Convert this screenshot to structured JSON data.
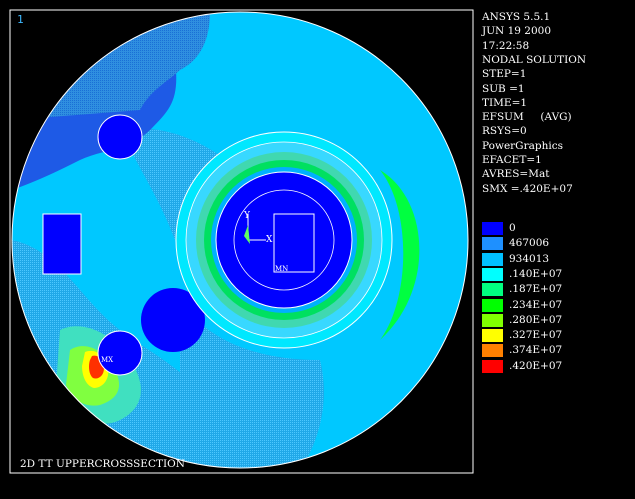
{
  "window": {
    "number": "1",
    "title": "2D TT UPPERCROSSSECTION"
  },
  "header_lines": [
    "ANSYS 5.5.1",
    "JUN 19 2000",
    "17:22:58",
    "NODAL SOLUTION",
    "STEP=1",
    "SUB =1",
    "TIME=1",
    "EFSUM     (AVG)",
    "RSYS=0",
    "PowerGraphics",
    "EFACET=1",
    "AVRES=Mat",
    "SMX =.420E+07"
  ],
  "legend": [
    {
      "label": "0",
      "color": "#0000ff"
    },
    {
      "label": "467006",
      "color": "#1e90ff"
    },
    {
      "label": "934013",
      "color": "#00c0ff"
    },
    {
      "label": ".140E+07",
      "color": "#00ffff"
    },
    {
      "label": ".187E+07",
      "color": "#00ff80"
    },
    {
      "label": ".234E+07",
      "color": "#00ff00"
    },
    {
      "label": ".280E+07",
      "color": "#80ff00"
    },
    {
      "label": ".327E+07",
      "color": "#ffff00"
    },
    {
      "label": ".374E+07",
      "color": "#ff8000"
    },
    {
      "label": ".420E+07",
      "color": "#ff0000"
    }
  ],
  "markers": {
    "mx": "MX",
    "mn": "MN",
    "axis_x": "X",
    "axis_y": "Y"
  },
  "colors": {
    "background": "#000000",
    "frame": "#ffffff",
    "c0": "#0000ff",
    "c1": "#1e90ff",
    "c2": "#00c0ff",
    "c3": "#00ffff",
    "c4": "#00ff80",
    "c5": "#00ff00",
    "c6": "#80ff00",
    "c7": "#ffff00",
    "c8": "#ff8000",
    "c9": "#ff0000"
  }
}
